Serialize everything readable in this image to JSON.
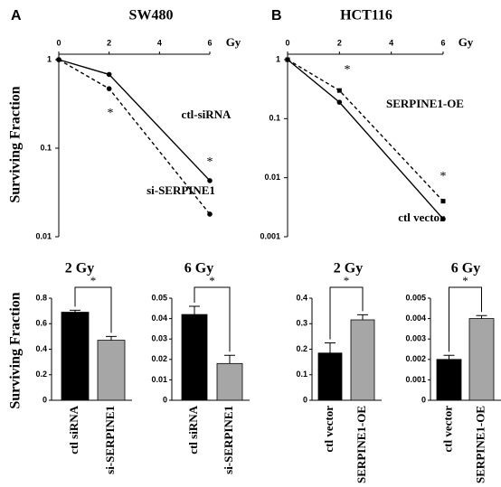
{
  "chart_data": [
    {
      "type": "line",
      "panel": "A",
      "title": "SW480",
      "y_label": "Surviving Fraction",
      "x_label": "Gy",
      "log_y": true,
      "x": [
        0,
        2,
        6
      ],
      "xlim": [
        0,
        6
      ],
      "xticks": [
        0,
        2,
        4,
        6
      ],
      "ylim": [
        0.01,
        1
      ],
      "yticks": [
        0.01,
        0.1,
        1
      ],
      "series": [
        {
          "name": "ctl-siRNA",
          "color": "#000000",
          "dash": false,
          "values": [
            1,
            0.68,
            0.043
          ]
        },
        {
          "name": "si-SERPINE1",
          "color": "#000000",
          "dash": true,
          "values": [
            1,
            0.47,
            0.018
          ]
        }
      ],
      "annotations": [
        "*",
        "*"
      ]
    },
    {
      "type": "line",
      "panel": "B",
      "title": "HCT116",
      "x_label": "Gy",
      "log_y": true,
      "x": [
        0,
        2,
        6
      ],
      "xlim": [
        0,
        6
      ],
      "xticks": [
        0,
        2,
        4,
        6
      ],
      "ylim": [
        0.001,
        1
      ],
      "yticks": [
        0.001,
        0.01,
        0.1,
        1
      ],
      "series": [
        {
          "name": "SERPINE1-OE",
          "color": "#000000",
          "dash": true,
          "values": [
            1,
            0.3,
            0.004
          ]
        },
        {
          "name": "ctl vector",
          "color": "#000000",
          "dash": false,
          "values": [
            1,
            0.19,
            0.002
          ]
        }
      ],
      "annotations": [
        "*",
        "*"
      ]
    },
    {
      "type": "bar",
      "title": "2 Gy",
      "y_label": "Surviving Fraction",
      "categories": [
        "ctl siRNA",
        "si-SERPINE1"
      ],
      "values": [
        0.69,
        0.47
      ],
      "errors": [
        0.015,
        0.03
      ],
      "colors": [
        "#000000",
        "#a6a6a6"
      ],
      "ylim": [
        0,
        0.8
      ],
      "yticks": [
        0,
        0.2,
        0.4,
        0.6,
        0.8
      ],
      "annotations": [
        "*"
      ]
    },
    {
      "type": "bar",
      "title": "6 Gy",
      "categories": [
        "ctl siRNA",
        "si-SERPINE1"
      ],
      "values": [
        0.042,
        0.018
      ],
      "errors": [
        0.004,
        0.004
      ],
      "colors": [
        "#000000",
        "#a6a6a6"
      ],
      "ylim": [
        0,
        0.05
      ],
      "yticks": [
        0,
        0.01,
        0.02,
        0.03,
        0.04,
        0.05
      ],
      "annotations": [
        "*"
      ]
    },
    {
      "type": "bar",
      "title": "2 Gy",
      "categories": [
        "ctl vector",
        "SERPINE1-OE"
      ],
      "values": [
        0.185,
        0.315
      ],
      "errors": [
        0.04,
        0.02
      ],
      "colors": [
        "#000000",
        "#a6a6a6"
      ],
      "ylim": [
        0,
        0.4
      ],
      "yticks": [
        0,
        0.1,
        0.2,
        0.3,
        0.4
      ],
      "annotations": [
        "*"
      ]
    },
    {
      "type": "bar",
      "title": "6 Gy",
      "categories": [
        "ctl vector",
        "SERPINE1-OE"
      ],
      "values": [
        0.002,
        0.004
      ],
      "errors": [
        0.0002,
        0.00015
      ],
      "colors": [
        "#000000",
        "#a6a6a6"
      ],
      "ylim": [
        0,
        0.005
      ],
      "yticks": [
        0,
        0.001,
        0.002,
        0.003,
        0.004,
        0.005
      ],
      "annotations": [
        "*"
      ]
    }
  ]
}
